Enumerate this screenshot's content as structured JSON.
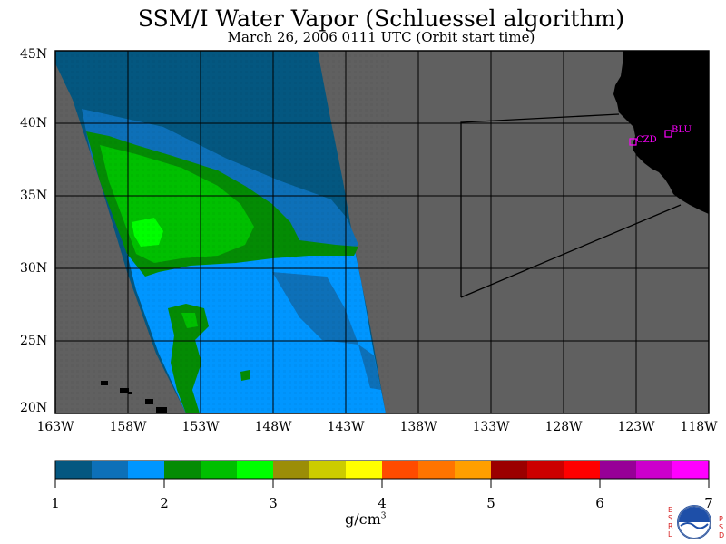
{
  "header": {
    "title": "SSM/I Water Vapor (Schluessel algorithm)",
    "subtitle": "March 26, 2006  0111 UTC  (Orbit start time)"
  },
  "map": {
    "lat_labels": [
      "45N",
      "40N",
      "35N",
      "30N",
      "25N",
      "20N"
    ],
    "lon_labels": [
      "163W",
      "158W",
      "153W",
      "148W",
      "143W",
      "138W",
      "133W",
      "128W",
      "123W",
      "118W"
    ],
    "lat_range": [
      20,
      45
    ],
    "lon_range": [
      -163,
      -118
    ],
    "stations": [
      {
        "id": "CZD",
        "lat": 38.6,
        "lon": -123.2
      },
      {
        "id": "BLU",
        "lat": 39.3,
        "lon": -120.7
      }
    ],
    "colors": {
      "ocean_no_data": "#606060",
      "land": "#000000",
      "station": "#ff00ff"
    }
  },
  "colorbar": {
    "labels": [
      "1",
      "2",
      "3",
      "4",
      "5",
      "6",
      "7"
    ],
    "colors": [
      "#045780",
      "#0d70b8",
      "#0096ff",
      "#048b04",
      "#00bf00",
      "#00ff00",
      "#9b8d07",
      "#cccc00",
      "#ffff00",
      "#ff4b00",
      "#ff7400",
      "#ff9f00",
      "#9b0000",
      "#cc0000",
      "#ff0000",
      "#970097",
      "#cc00cc",
      "#ff00ff"
    ],
    "units": "g/cm"
  },
  "logo": {
    "left_text": "ESRL",
    "right_text": "PSD",
    "center_text": "NOAA"
  }
}
